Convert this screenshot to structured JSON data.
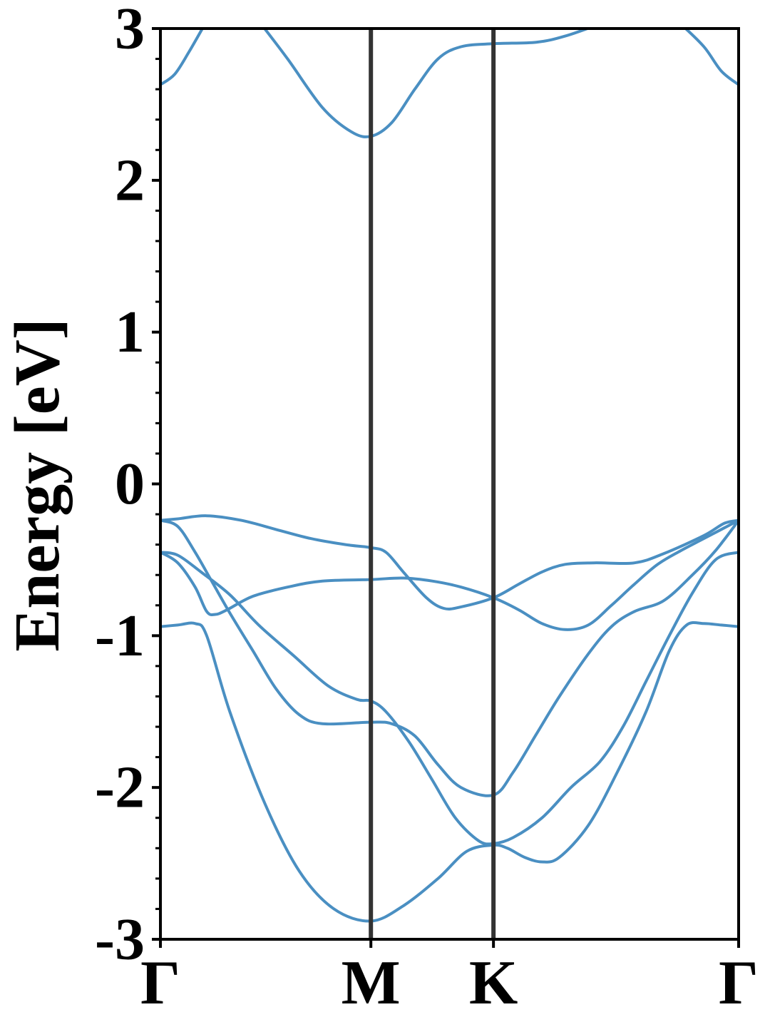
{
  "chart_data": {
    "type": "line",
    "title": "",
    "xlabel": "",
    "ylabel": "Energy [eV]",
    "ylim": [
      -3,
      3
    ],
    "xlim": [
      0,
      1
    ],
    "grid": false,
    "legend": "none",
    "x_ticks": [
      {
        "label": "Γ",
        "x": 0.0
      },
      {
        "label": "M",
        "x": 0.364
      },
      {
        "label": "K",
        "x": 0.576
      },
      {
        "label": "Γ",
        "x": 1.0
      }
    ],
    "y_ticks": [
      {
        "label": "3",
        "value": 3
      },
      {
        "label": "2",
        "value": 2
      },
      {
        "label": "1",
        "value": 1
      },
      {
        "label": "0",
        "value": 0
      },
      {
        "label": "-1",
        "value": -1
      },
      {
        "label": "-2",
        "value": -2
      },
      {
        "label": "-3",
        "value": -3
      }
    ],
    "y_minor_step": 0.2,
    "colors": {
      "bands": "#4a8fc2",
      "vlines": "#333333",
      "axes": "#000000"
    },
    "series": [
      {
        "points": [
          [
            0.0,
            2.63
          ],
          [
            0.025,
            2.7
          ],
          [
            0.05,
            2.85
          ],
          [
            0.08,
            3.05
          ]
        ]
      },
      {
        "points": [
          [
            0.17,
            3.05
          ],
          [
            0.22,
            2.8
          ],
          [
            0.28,
            2.48
          ],
          [
            0.33,
            2.32
          ],
          [
            0.364,
            2.29
          ],
          [
            0.4,
            2.38
          ],
          [
            0.44,
            2.6
          ],
          [
            0.48,
            2.8
          ],
          [
            0.52,
            2.88
          ],
          [
            0.576,
            2.9
          ],
          [
            0.65,
            2.91
          ],
          [
            0.7,
            2.95
          ],
          [
            0.76,
            3.03
          ]
        ]
      },
      {
        "points": [
          [
            0.9,
            3.03
          ],
          [
            0.94,
            2.88
          ],
          [
            0.97,
            2.72
          ],
          [
            1.0,
            2.63
          ]
        ]
      },
      {
        "points": [
          [
            0.0,
            -0.24
          ],
          [
            0.03,
            -0.23
          ],
          [
            0.08,
            -0.21
          ],
          [
            0.14,
            -0.24
          ],
          [
            0.2,
            -0.3
          ],
          [
            0.26,
            -0.36
          ],
          [
            0.32,
            -0.4
          ],
          [
            0.364,
            -0.42
          ],
          [
            0.39,
            -0.45
          ],
          [
            0.42,
            -0.58
          ],
          [
            0.46,
            -0.75
          ],
          [
            0.49,
            -0.82
          ],
          [
            0.52,
            -0.81
          ],
          [
            0.576,
            -0.75
          ],
          [
            0.62,
            -0.66
          ],
          [
            0.66,
            -0.58
          ],
          [
            0.7,
            -0.53
          ],
          [
            0.75,
            -0.52
          ],
          [
            0.82,
            -0.52
          ],
          [
            0.87,
            -0.46
          ],
          [
            0.94,
            -0.34
          ],
          [
            0.975,
            -0.26
          ],
          [
            1.0,
            -0.24
          ]
        ]
      },
      {
        "points": [
          [
            0.0,
            -0.24
          ],
          [
            0.03,
            -0.28
          ],
          [
            0.06,
            -0.45
          ],
          [
            0.09,
            -0.65
          ],
          [
            0.12,
            -0.85
          ],
          [
            0.16,
            -1.1
          ],
          [
            0.2,
            -1.35
          ],
          [
            0.24,
            -1.52
          ],
          [
            0.28,
            -1.58
          ],
          [
            0.364,
            -1.57
          ],
          [
            0.4,
            -1.58
          ],
          [
            0.44,
            -1.66
          ],
          [
            0.48,
            -1.85
          ],
          [
            0.52,
            -2.0
          ],
          [
            0.576,
            -2.05
          ],
          [
            0.61,
            -1.9
          ],
          [
            0.65,
            -1.65
          ],
          [
            0.69,
            -1.4
          ],
          [
            0.74,
            -1.12
          ],
          [
            0.78,
            -0.94
          ],
          [
            0.82,
            -0.84
          ],
          [
            0.87,
            -0.77
          ],
          [
            0.92,
            -0.6
          ],
          [
            0.96,
            -0.44
          ],
          [
            1.0,
            -0.24
          ]
        ]
      },
      {
        "points": [
          [
            0.0,
            -0.45
          ],
          [
            0.03,
            -0.52
          ],
          [
            0.06,
            -0.68
          ],
          [
            0.08,
            -0.84
          ],
          [
            0.095,
            -0.86
          ],
          [
            0.115,
            -0.83
          ],
          [
            0.16,
            -0.74
          ],
          [
            0.22,
            -0.68
          ],
          [
            0.28,
            -0.64
          ],
          [
            0.364,
            -0.63
          ],
          [
            0.42,
            -0.62
          ],
          [
            0.47,
            -0.64
          ],
          [
            0.52,
            -0.68
          ],
          [
            0.576,
            -0.75
          ],
          [
            0.62,
            -0.83
          ],
          [
            0.66,
            -0.92
          ],
          [
            0.7,
            -0.96
          ],
          [
            0.74,
            -0.93
          ],
          [
            0.78,
            -0.8
          ],
          [
            0.82,
            -0.66
          ],
          [
            0.86,
            -0.53
          ],
          [
            0.9,
            -0.44
          ],
          [
            0.95,
            -0.34
          ],
          [
            1.0,
            -0.24
          ]
        ]
      },
      {
        "points": [
          [
            0.0,
            -0.45
          ],
          [
            0.03,
            -0.47
          ],
          [
            0.07,
            -0.58
          ],
          [
            0.12,
            -0.73
          ],
          [
            0.17,
            -0.93
          ],
          [
            0.23,
            -1.13
          ],
          [
            0.29,
            -1.33
          ],
          [
            0.34,
            -1.42
          ],
          [
            0.364,
            -1.43
          ],
          [
            0.39,
            -1.5
          ],
          [
            0.43,
            -1.7
          ],
          [
            0.47,
            -1.95
          ],
          [
            0.51,
            -2.2
          ],
          [
            0.55,
            -2.35
          ],
          [
            0.576,
            -2.37
          ],
          [
            0.61,
            -2.33
          ],
          [
            0.66,
            -2.2
          ],
          [
            0.71,
            -2.0
          ],
          [
            0.76,
            -1.83
          ],
          [
            0.8,
            -1.6
          ],
          [
            0.84,
            -1.3
          ],
          [
            0.88,
            -1.0
          ],
          [
            0.92,
            -0.72
          ],
          [
            0.96,
            -0.5
          ],
          [
            1.0,
            -0.45
          ]
        ]
      },
      {
        "points": [
          [
            0.0,
            -0.94
          ],
          [
            0.03,
            -0.93
          ],
          [
            0.06,
            -0.92
          ],
          [
            0.08,
            -1.0
          ],
          [
            0.12,
            -1.5
          ],
          [
            0.18,
            -2.1
          ],
          [
            0.24,
            -2.55
          ],
          [
            0.3,
            -2.8
          ],
          [
            0.364,
            -2.88
          ],
          [
            0.42,
            -2.78
          ],
          [
            0.48,
            -2.6
          ],
          [
            0.53,
            -2.42
          ],
          [
            0.576,
            -2.38
          ],
          [
            0.6,
            -2.4
          ],
          [
            0.63,
            -2.46
          ],
          [
            0.66,
            -2.49
          ],
          [
            0.69,
            -2.46
          ],
          [
            0.74,
            -2.25
          ],
          [
            0.79,
            -1.9
          ],
          [
            0.84,
            -1.5
          ],
          [
            0.88,
            -1.1
          ],
          [
            0.91,
            -0.93
          ],
          [
            0.94,
            -0.92
          ],
          [
            0.97,
            -0.93
          ],
          [
            1.0,
            -0.94
          ]
        ]
      }
    ]
  }
}
